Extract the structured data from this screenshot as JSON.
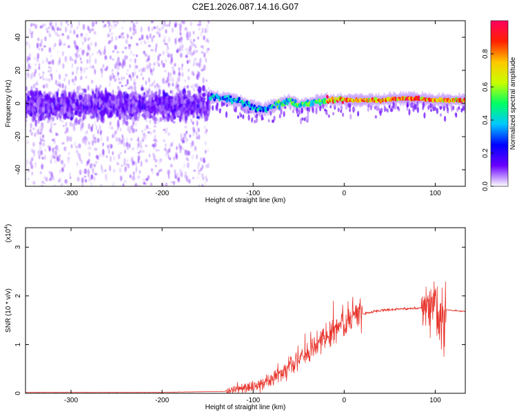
{
  "title": "C2E1.2026.087.14.16.G07",
  "chart_data": [
    {
      "type": "heatmap",
      "xlabel": "Height of straight line (km)",
      "ylabel": "Frequency (Hz)",
      "xlim": [
        -350,
        133
      ],
      "ylim": [
        -50,
        50
      ],
      "xticks": [
        -300,
        -200,
        -100,
        0,
        100
      ],
      "yticks": [
        -40,
        -20,
        0,
        20,
        40
      ],
      "colorbar": {
        "label": "Normalized spectral amplitude",
        "range": [
          0,
          1
        ],
        "ticks": [
          "0.0",
          "0.2",
          "0.4",
          "0.6",
          "0.8"
        ],
        "colors": [
          "#ffffff",
          "#6a00ff",
          "#0000ff",
          "#00c8ff",
          "#00ff64",
          "#c8ff00",
          "#ffc800",
          "#ff2000",
          "#ff0060"
        ]
      },
      "features": {
        "noise_region_x": [
          -350,
          -148
        ],
        "noise_band_freq": [
          -10,
          8
        ],
        "signal_ridge": [
          [
            -148,
            4
          ],
          [
            -130,
            3
          ],
          [
            -120,
            2
          ],
          [
            -110,
            0
          ],
          [
            -100,
            -2
          ],
          [
            -90,
            -4
          ],
          [
            -80,
            -2
          ],
          [
            -70,
            0
          ],
          [
            -60,
            2
          ],
          [
            -50,
            -1
          ],
          [
            -40,
            0
          ],
          [
            -30,
            1
          ],
          [
            -20,
            2
          ],
          [
            0,
            2
          ],
          [
            40,
            2
          ],
          [
            60,
            3
          ],
          [
            80,
            3
          ],
          [
            100,
            2
          ],
          [
            133,
            2
          ]
        ]
      }
    },
    {
      "type": "line",
      "xlabel": "Height of straight line (km)",
      "ylabel": "SNR (10 * v/v)",
      "scale_label": "(x10",
      "scale_exponent": "4",
      "scale_close": ")",
      "xlim": [
        -350,
        133
      ],
      "ylim": [
        0,
        3.4
      ],
      "xticks": [
        -300,
        -200,
        -100,
        0,
        100
      ],
      "yticks": [
        0,
        1,
        2,
        3
      ],
      "series_color": "#e8342c",
      "series": [
        {
          "name": "SNR",
          "x": [
            -350,
            -200,
            -130,
            -110,
            -100,
            -90,
            -80,
            -70,
            -60,
            -50,
            -40,
            -30,
            -20,
            -10,
            0,
            10,
            20,
            30,
            40,
            50,
            60,
            70,
            80,
            90,
            95,
            100,
            105,
            110,
            120,
            133
          ],
          "values": [
            0.02,
            0.02,
            0.04,
            0.1,
            0.15,
            0.22,
            0.3,
            0.4,
            0.55,
            0.7,
            0.85,
            1.0,
            1.15,
            1.3,
            1.45,
            1.55,
            1.62,
            1.67,
            1.7,
            1.72,
            1.73,
            1.74,
            1.74,
            1.76,
            1.8,
            1.9,
            1.4,
            1.72,
            1.7,
            1.68
          ]
        }
      ]
    }
  ]
}
